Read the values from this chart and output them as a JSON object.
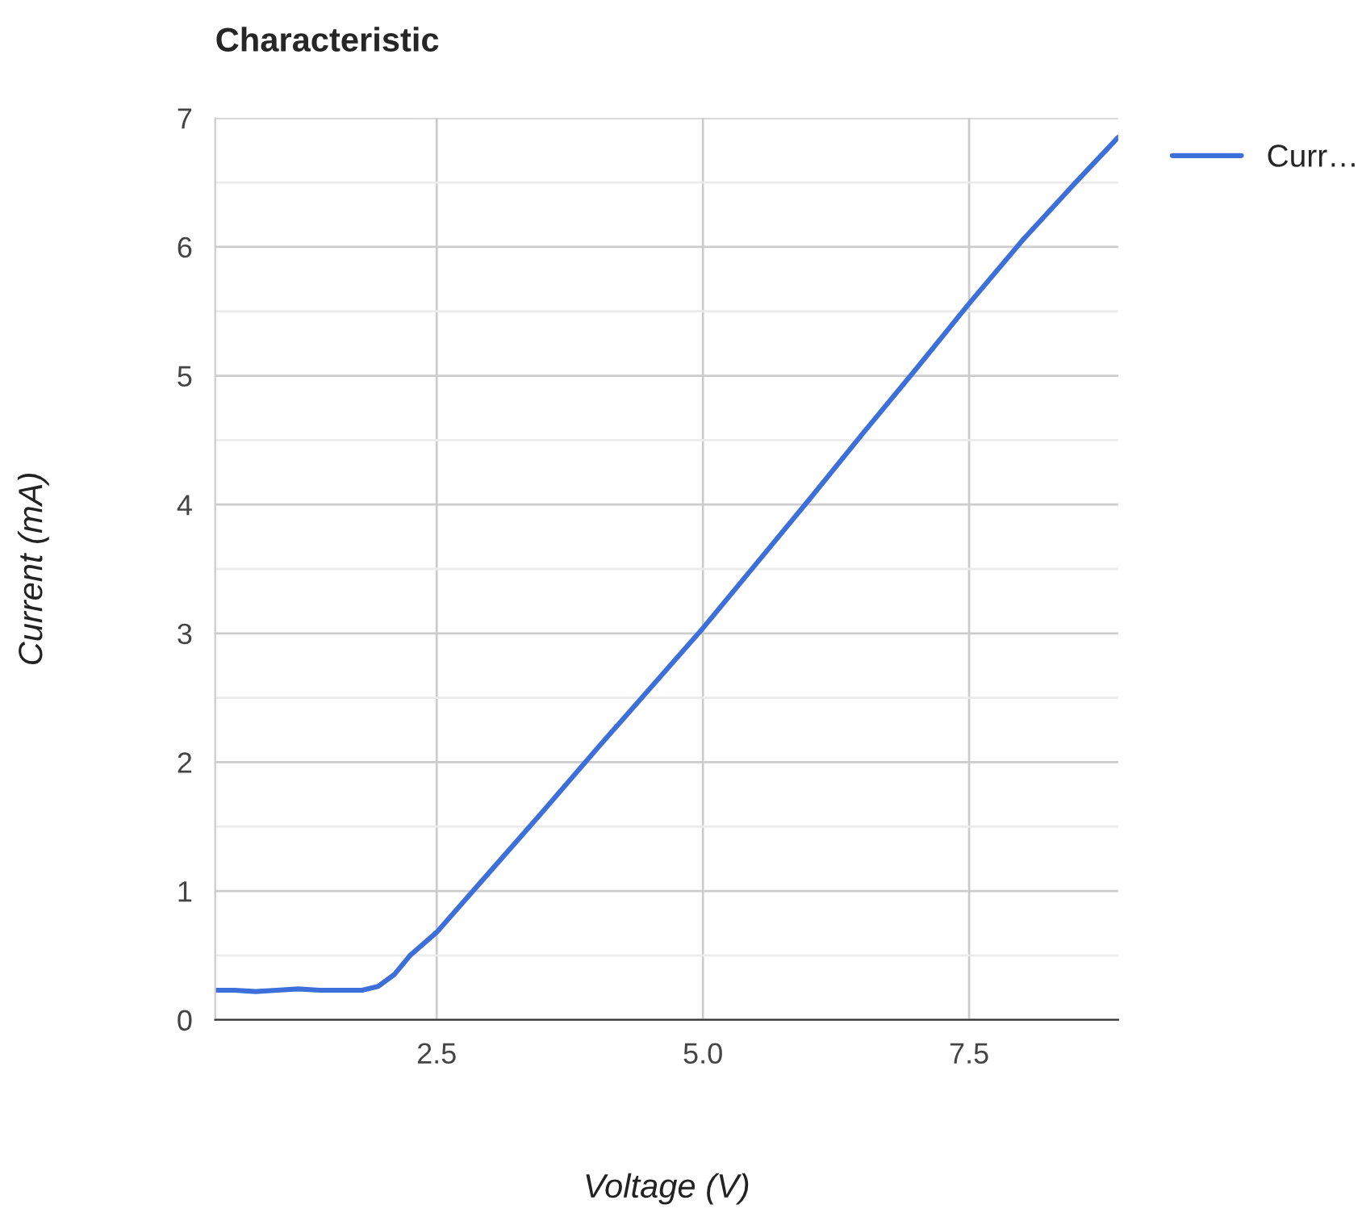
{
  "chart_data": {
    "type": "line",
    "title": "Characteristic",
    "xlabel": "Voltage (V)",
    "ylabel": "Current (mA)",
    "x": [
      0.42,
      0.6,
      0.8,
      1.0,
      1.2,
      1.4,
      1.6,
      1.8,
      1.95,
      2.1,
      2.25,
      2.5,
      3.0,
      3.5,
      4.0,
      4.5,
      5.0,
      5.5,
      6.0,
      6.5,
      7.0,
      7.5,
      8.0,
      8.5,
      8.9
    ],
    "series": [
      {
        "name": "Curr…",
        "color": "#3c6fd9",
        "values": [
          0.23,
          0.23,
          0.22,
          0.23,
          0.24,
          0.23,
          0.23,
          0.23,
          0.26,
          0.35,
          0.5,
          0.68,
          1.15,
          1.62,
          2.1,
          2.57,
          3.04,
          3.54,
          4.04,
          4.55,
          5.05,
          5.56,
          6.05,
          6.5,
          6.85
        ]
      }
    ],
    "xlim": [
      0.42,
      8.9
    ],
    "xticks": [
      {
        "value": 2.5,
        "label": "2.5"
      },
      {
        "value": 5,
        "label": "5.0"
      },
      {
        "value": 7.5,
        "label": "7.5"
      }
    ],
    "ylim": [
      0,
      7
    ],
    "yticks": [
      0,
      {
        "value": 0.5,
        "label": null
      },
      1,
      {
        "value": 1.5,
        "label": null
      },
      2,
      {
        "value": 2.5,
        "label": null
      },
      3,
      {
        "value": 3.5,
        "label": null
      },
      4,
      {
        "value": 4.5,
        "label": null
      },
      5,
      {
        "value": 5.5,
        "label": null
      },
      6,
      {
        "value": 6.5,
        "label": null
      },
      7
    ],
    "grid": true,
    "legend": "top right",
    "marker": "none",
    "line_style": "solid"
  }
}
